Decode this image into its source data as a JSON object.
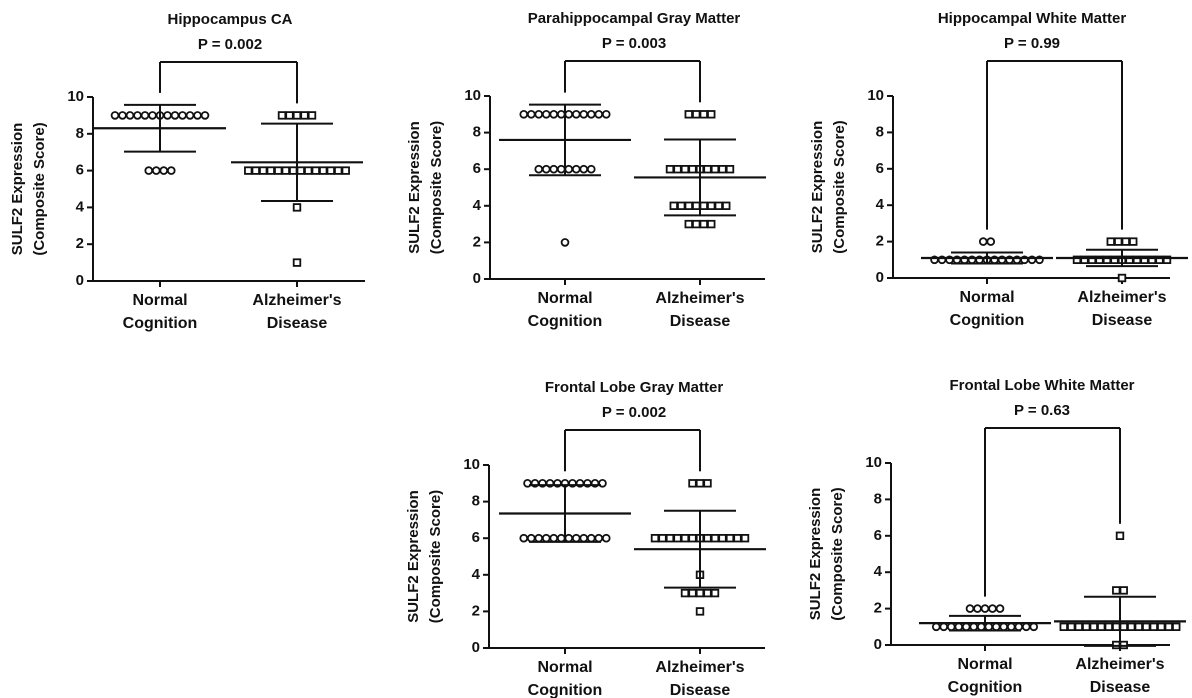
{
  "chart_data": [
    {
      "type": "scatter",
      "title": "Hippocampus CA",
      "annotation": "P = 0.002",
      "ylabel": [
        "SULF2 Expression",
        "(Composite Score)"
      ],
      "categories": [
        [
          "Normal",
          "Cognition"
        ],
        [
          "Alzheimer's",
          "Disease"
        ]
      ],
      "ylim": [
        0,
        10
      ],
      "yticks": [
        0,
        2,
        4,
        6,
        8,
        10
      ],
      "groups": [
        {
          "marker": "circle",
          "mean": 8.3,
          "sd": 1.27,
          "values": [
            9,
            9,
            9,
            9,
            9,
            9,
            9,
            9,
            9,
            9,
            9,
            9,
            9,
            6,
            6,
            6,
            6
          ]
        },
        {
          "marker": "square",
          "mean": 6.45,
          "sd": 2.1,
          "values": [
            9,
            9,
            9,
            9,
            9,
            6,
            6,
            6,
            6,
            6,
            6,
            6,
            6,
            6,
            6,
            6,
            6,
            6,
            6,
            4,
            1
          ]
        }
      ]
    },
    {
      "type": "scatter",
      "title": "Parahippocampal Gray Matter",
      "annotation": "P = 0.003",
      "ylabel": [
        "SULF2 Expression",
        "(Composite Score)"
      ],
      "categories": [
        [
          "Normal",
          "Cognition"
        ],
        [
          "Alzheimer's",
          "Disease"
        ]
      ],
      "ylim": [
        0,
        10
      ],
      "yticks": [
        0,
        2,
        4,
        6,
        8,
        10
      ],
      "groups": [
        {
          "marker": "circle",
          "mean": 7.6,
          "sd": 1.93,
          "values": [
            9,
            9,
            9,
            9,
            9,
            9,
            9,
            9,
            9,
            9,
            9,
            9,
            6,
            6,
            6,
            6,
            6,
            6,
            6,
            6,
            2
          ]
        },
        {
          "marker": "square",
          "mean": 5.55,
          "sd": 2.07,
          "values": [
            9,
            9,
            9,
            9,
            6,
            6,
            6,
            6,
            6,
            6,
            6,
            6,
            6,
            4,
            4,
            4,
            4,
            4,
            4,
            4,
            4,
            3,
            3,
            3,
            3
          ]
        }
      ]
    },
    {
      "type": "scatter",
      "title": "Hippocampal White Matter",
      "annotation": "P = 0.99",
      "ylabel": [
        "SULF2 Expression",
        "(Composite Score)"
      ],
      "categories": [
        [
          "Normal",
          "Cognition"
        ],
        [
          "Alzheimer's",
          "Disease"
        ]
      ],
      "ylim": [
        0,
        10
      ],
      "yticks": [
        0,
        2,
        4,
        6,
        8,
        10
      ],
      "groups": [
        {
          "marker": "circle",
          "mean": 1.1,
          "sd": 0.3,
          "values": [
            2,
            2,
            1,
            1,
            1,
            1,
            1,
            1,
            1,
            1,
            1,
            1,
            1,
            1,
            1,
            1,
            1
          ]
        },
        {
          "marker": "square",
          "mean": 1.1,
          "sd": 0.45,
          "values": [
            2,
            2,
            2,
            2,
            1,
            1,
            1,
            1,
            1,
            1,
            1,
            1,
            1,
            1,
            1,
            1,
            1,
            0
          ]
        }
      ]
    },
    {
      "type": "scatter",
      "title": "Frontal Lobe Gray Matter",
      "annotation": "P = 0.002",
      "ylabel": [
        "SULF2 Expression",
        "(Composite Score)"
      ],
      "categories": [
        [
          "Normal",
          "Cognition"
        ],
        [
          "Alzheimer's",
          "Disease"
        ]
      ],
      "ylim": [
        0,
        10
      ],
      "yticks": [
        0,
        2,
        4,
        6,
        8,
        10
      ],
      "groups": [
        {
          "marker": "circle",
          "mean": 7.35,
          "sd": 1.55,
          "values": [
            9,
            9,
            9,
            9,
            9,
            9,
            9,
            9,
            9,
            9,
            9,
            6,
            6,
            6,
            6,
            6,
            6,
            6,
            6,
            6,
            6,
            6,
            6
          ]
        },
        {
          "marker": "square",
          "mean": 5.4,
          "sd": 2.1,
          "values": [
            9,
            9,
            9,
            6,
            6,
            6,
            6,
            6,
            6,
            6,
            6,
            6,
            6,
            6,
            6,
            6,
            4,
            3,
            3,
            3,
            3,
            3,
            2
          ]
        }
      ]
    },
    {
      "type": "scatter",
      "title": "Frontal Lobe White Matter",
      "annotation": "P = 0.63",
      "ylabel": [
        "SULF2 Expression",
        "(Composite Score)"
      ],
      "categories": [
        [
          "Normal",
          "Cognition"
        ],
        [
          "Alzheimer's",
          "Disease"
        ]
      ],
      "ylim": [
        0,
        10
      ],
      "yticks": [
        0,
        2,
        4,
        6,
        8,
        10
      ],
      "groups": [
        {
          "marker": "circle",
          "mean": 1.2,
          "sd": 0.4,
          "values": [
            2,
            2,
            2,
            2,
            2,
            1,
            1,
            1,
            1,
            1,
            1,
            1,
            1,
            1,
            1,
            1,
            1,
            1,
            1
          ]
        },
        {
          "marker": "square",
          "mean": 1.3,
          "sd": 1.35,
          "values": [
            6,
            3,
            3,
            1,
            1,
            1,
            1,
            1,
            1,
            1,
            1,
            1,
            1,
            1,
            1,
            1,
            1,
            1,
            1,
            0,
            0
          ]
        }
      ]
    }
  ]
}
